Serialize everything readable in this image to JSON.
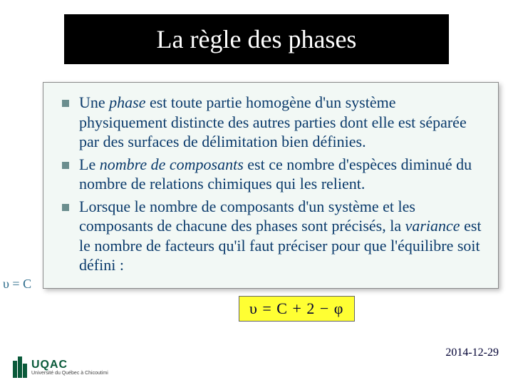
{
  "title": "La règle des phases",
  "bullets": [
    {
      "pre": "Une ",
      "em": "phase",
      "post": " est toute partie homogène d'un système physiquement distincte des autres parties dont elle est séparée par des surfaces de délimitation bien définies."
    },
    {
      "pre": "Le ",
      "em": "nombre de composants",
      "post": " est ce nombre d'espèces diminué du nombre de relations chimiques qui les relient."
    },
    {
      "pre": "Lorsque le nombre de composants d'un système et les composants de chacune des phases sont précisés, la ",
      "em": "variance",
      "post": " est le nombre de facteurs qu'il faut préciser pour que l'équilibre soit défini :"
    }
  ],
  "formula": "υ  =  C  +  2  −  φ",
  "side_greek": "υ = C",
  "date": "2014-12-29",
  "logo": {
    "name": "UQAC",
    "sub": "Université du Québec à Chicoutimi"
  },
  "colors": {
    "title_bg": "#000000",
    "title_fg": "#ffffff",
    "content_bg": "#f2f8f5",
    "bullet_marker": "#6b8e8e",
    "body_text": "#0a3a6b",
    "formula_bg": "#ffff33",
    "logo_green": "#0a5a3a"
  }
}
